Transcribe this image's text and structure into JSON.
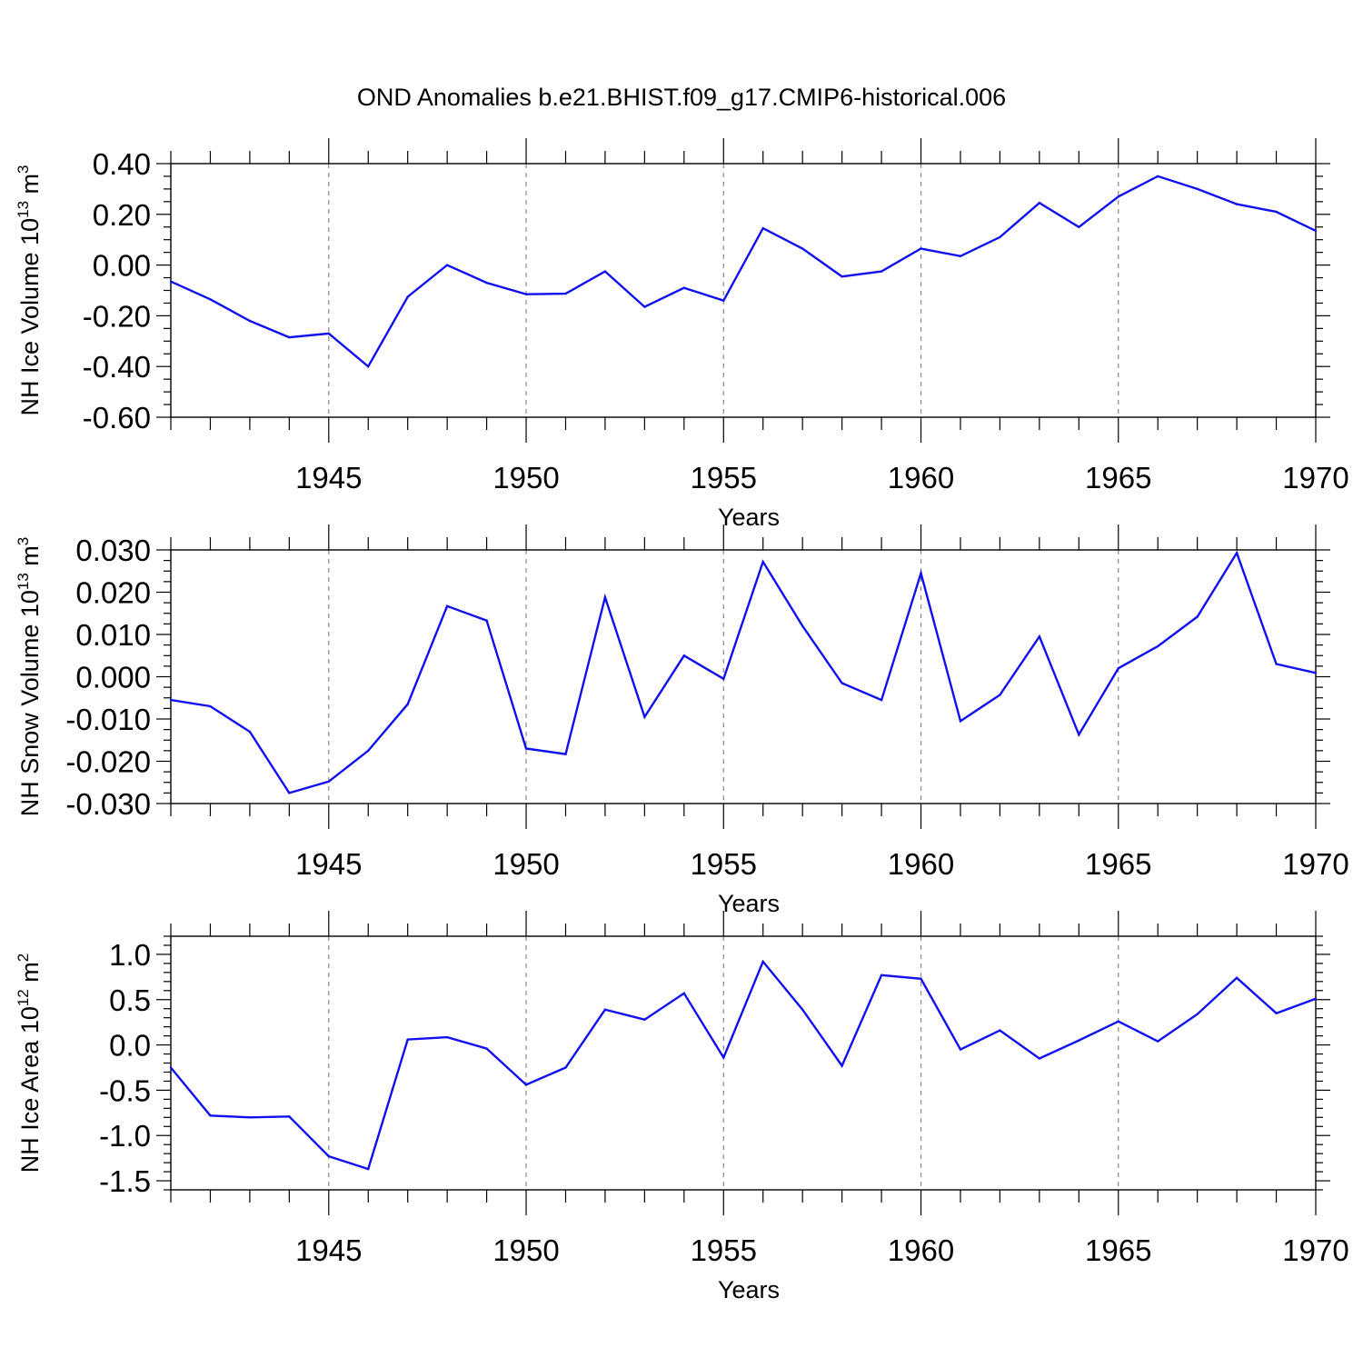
{
  "figure": {
    "title": "OND Anomalies b.e21.BHIST.f09_g17.CMIP6-historical.006",
    "line_color": "#1010f0",
    "grid_color": "#888888"
  },
  "chart_data": [
    {
      "type": "line",
      "title": "OND Anomalies b.e21.BHIST.f09_g17.CMIP6-historical.006",
      "xlabel": "Years",
      "ylabel": {
        "prefix": "NH Ice Volume 10",
        "sup1": "13",
        "mid": " m",
        "sup2": "3"
      },
      "xlim": [
        1941,
        1970
      ],
      "ylim": [
        -0.6,
        0.4
      ],
      "xticks": [
        1945,
        1950,
        1955,
        1960,
        1965,
        1970
      ],
      "yticks": [
        -0.6,
        -0.4,
        -0.2,
        0.0,
        0.2,
        0.4
      ],
      "ytick_labels": [
        "-0.60",
        "-0.40",
        "-0.20",
        "0.00",
        "0.20",
        "0.40"
      ],
      "y_minor_step": 0.05,
      "vgrid": [
        1945,
        1950,
        1955,
        1960,
        1965
      ],
      "x": [
        1941,
        1942,
        1943,
        1944,
        1945,
        1946,
        1947,
        1948,
        1949,
        1950,
        1951,
        1952,
        1953,
        1954,
        1955,
        1956,
        1957,
        1958,
        1959,
        1960,
        1961,
        1962,
        1963,
        1964,
        1965,
        1966,
        1967,
        1968,
        1969,
        1970
      ],
      "values": [
        -0.065,
        -0.135,
        -0.22,
        -0.285,
        -0.27,
        -0.4,
        -0.125,
        0.0,
        -0.07,
        -0.115,
        -0.113,
        -0.025,
        -0.165,
        -0.09,
        -0.14,
        0.145,
        0.065,
        -0.045,
        -0.025,
        0.065,
        0.035,
        0.11,
        0.245,
        0.15,
        0.27,
        0.35,
        0.3,
        0.24,
        0.21,
        0.135
      ]
    },
    {
      "type": "line",
      "xlabel": "Years",
      "ylabel": {
        "prefix": "NH Snow Volume 10",
        "sup1": "13",
        "mid": " m",
        "sup2": "3"
      },
      "xlim": [
        1941,
        1970
      ],
      "ylim": [
        -0.03,
        0.03
      ],
      "xticks": [
        1945,
        1950,
        1955,
        1960,
        1965,
        1970
      ],
      "yticks": [
        -0.03,
        -0.02,
        -0.01,
        0.0,
        0.01,
        0.02,
        0.03
      ],
      "ytick_labels": [
        "-0.030",
        "-0.020",
        "-0.010",
        "0.000",
        "0.010",
        "0.020",
        "0.030"
      ],
      "y_minor_step": 0.0025,
      "vgrid": [
        1945,
        1950,
        1955,
        1960,
        1965
      ],
      "x": [
        1941,
        1942,
        1943,
        1944,
        1945,
        1946,
        1947,
        1948,
        1949,
        1950,
        1951,
        1952,
        1953,
        1954,
        1955,
        1956,
        1957,
        1958,
        1959,
        1960,
        1961,
        1962,
        1963,
        1964,
        1965,
        1966,
        1967,
        1968,
        1969,
        1970
      ],
      "values": [
        -0.0055,
        -0.007,
        -0.013,
        -0.0275,
        -0.0248,
        -0.0175,
        -0.0065,
        0.0167,
        0.0133,
        -0.017,
        -0.0183,
        0.0188,
        -0.0095,
        0.005,
        -0.0005,
        0.0272,
        0.012,
        -0.0015,
        -0.0055,
        0.0245,
        -0.0105,
        -0.0043,
        0.0095,
        -0.0137,
        0.002,
        0.0072,
        0.0142,
        0.0293,
        0.003,
        0.0009
      ]
    },
    {
      "type": "line",
      "xlabel": "Years",
      "ylabel": {
        "prefix": "NH Ice Area 10",
        "sup1": "12",
        "mid": " m",
        "sup2": "2"
      },
      "xlim": [
        1941,
        1970
      ],
      "ylim": [
        -1.6,
        1.2
      ],
      "xticks": [
        1945,
        1950,
        1955,
        1960,
        1965,
        1970
      ],
      "yticks": [
        -1.5,
        -1.0,
        -0.5,
        0.0,
        0.5,
        1.0
      ],
      "ytick_labels": [
        "-1.5",
        "-1.0",
        "-0.5",
        "0.0",
        "0.5",
        "1.0"
      ],
      "y_minor_step": 0.1,
      "vgrid": [
        1945,
        1950,
        1955,
        1960,
        1965
      ],
      "x": [
        1941,
        1942,
        1943,
        1944,
        1945,
        1946,
        1947,
        1948,
        1949,
        1950,
        1951,
        1952,
        1953,
        1954,
        1955,
        1956,
        1957,
        1958,
        1959,
        1960,
        1961,
        1962,
        1963,
        1964,
        1965,
        1966,
        1967,
        1968,
        1969,
        1970
      ],
      "values": [
        -0.25,
        -0.78,
        -0.8,
        -0.79,
        -1.23,
        -1.37,
        0.06,
        0.085,
        -0.04,
        -0.44,
        -0.25,
        0.39,
        0.28,
        0.57,
        -0.14,
        0.92,
        0.39,
        -0.23,
        0.77,
        0.73,
        -0.05,
        0.16,
        -0.15,
        0.05,
        0.26,
        0.04,
        0.34,
        0.74,
        0.35,
        0.51
      ]
    }
  ]
}
